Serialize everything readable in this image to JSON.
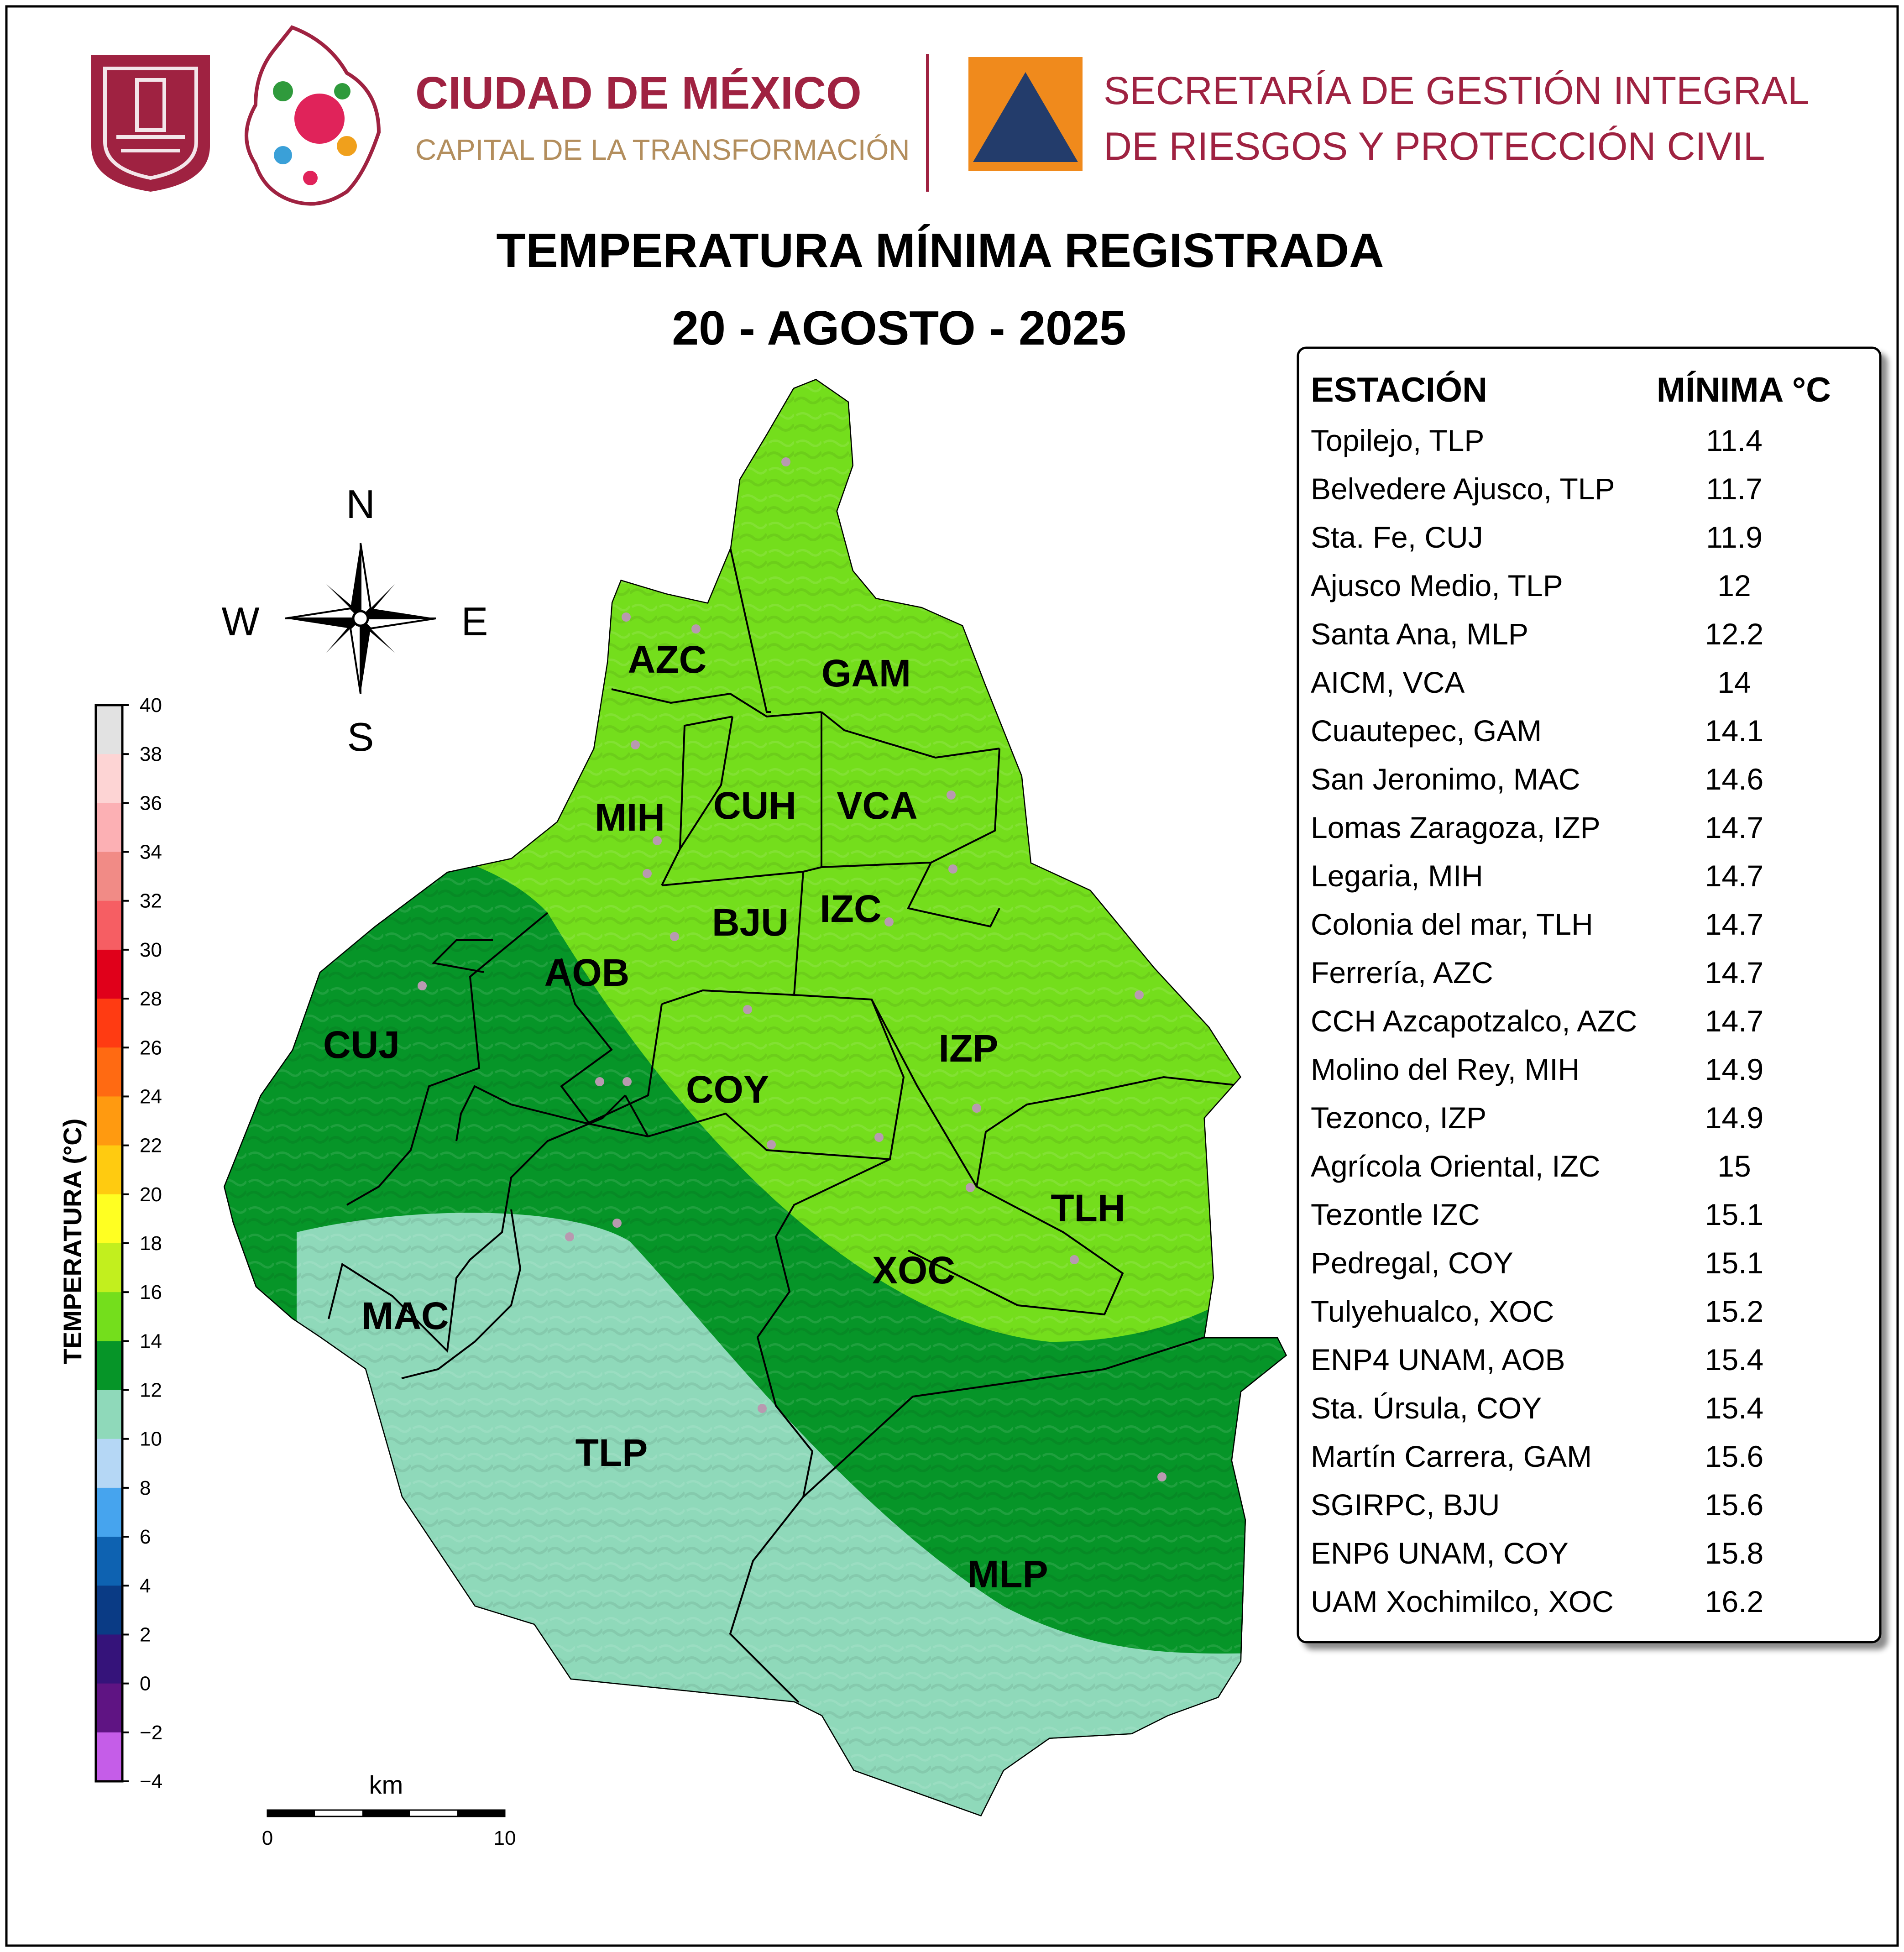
{
  "header": {
    "city_title": "CIUDAD DE MÉXICO",
    "city_subtitle": "CAPITAL DE LA TRANSFORMACIÓN",
    "agency_line1": "SECRETARÍA DE GESTIÓN INTEGRAL",
    "agency_line2": "DE RIESGOS Y PROTECCIÓN CIVIL",
    "colors": {
      "brand_wine": "#9f2241",
      "brand_gold": "#b38e5d",
      "protection_orange": "#f08a1c",
      "protection_navy": "#233c6b"
    }
  },
  "title": {
    "line1": "TEMPERATURA MÍNIMA REGISTRADA",
    "line2": "20 - AGOSTO - 2025"
  },
  "compass": {
    "n": "N",
    "s": "S",
    "e": "E",
    "w": "W",
    "icon": "compass-rose-icon"
  },
  "colorbar": {
    "label": "TEMPERATURA (°C)",
    "ticks": [
      "40",
      "38",
      "36",
      "34",
      "32",
      "30",
      "28",
      "26",
      "24",
      "22",
      "20",
      "18",
      "16",
      "14",
      "12",
      "10",
      "8",
      "6",
      "4",
      "2",
      "0",
      "−2",
      "−4"
    ],
    "bands_top_to_bottom": [
      {
        "from": 38,
        "to": 40,
        "color": "#e2e2e2"
      },
      {
        "from": 36,
        "to": 38,
        "color": "#fdd4d4"
      },
      {
        "from": 34,
        "to": 36,
        "color": "#fcb0b4"
      },
      {
        "from": 32,
        "to": 34,
        "color": "#f18b86"
      },
      {
        "from": 30,
        "to": 32,
        "color": "#f65e63"
      },
      {
        "from": 28,
        "to": 30,
        "color": "#e0001a"
      },
      {
        "from": 26,
        "to": 28,
        "color": "#ff3b12"
      },
      {
        "from": 24,
        "to": 26,
        "color": "#ff6a12"
      },
      {
        "from": 22,
        "to": 24,
        "color": "#ff9a10"
      },
      {
        "from": 20,
        "to": 22,
        "color": "#ffcb10"
      },
      {
        "from": 18,
        "to": 20,
        "color": "#ffff22"
      },
      {
        "from": 16,
        "to": 18,
        "color": "#c2ef1e"
      },
      {
        "from": 14,
        "to": 16,
        "color": "#74de1c"
      },
      {
        "from": 12,
        "to": 14,
        "color": "#069528"
      },
      {
        "from": 10,
        "to": 12,
        "color": "#8fd9ba"
      },
      {
        "from": 8,
        "to": 10,
        "color": "#b5d7f5"
      },
      {
        "from": 6,
        "to": 8,
        "color": "#46a4ee"
      },
      {
        "from": 4,
        "to": 6,
        "color": "#0e62b1"
      },
      {
        "from": 2,
        "to": 4,
        "color": "#0a3b85"
      },
      {
        "from": 0,
        "to": 2,
        "color": "#35137a"
      },
      {
        "from": -2,
        "to": 0,
        "color": "#5f1483"
      },
      {
        "from": -4,
        "to": -2,
        "color": "#c55de8"
      }
    ]
  },
  "map": {
    "fill_levels": {
      "level_14_16": "#74de1c",
      "level_12_14": "#069528",
      "level_10_12": "#8fd9ba"
    },
    "boroughs": [
      "AZC",
      "GAM",
      "MIH",
      "CUH",
      "VCA",
      "BJU",
      "IZC",
      "AOB",
      "CUJ",
      "COY",
      "IZP",
      "TLH",
      "XOC",
      "MAC",
      "TLP",
      "MLP"
    ]
  },
  "scale_bar": {
    "unit_label": "km",
    "min_label": "0",
    "max_label": "10"
  },
  "station_table": {
    "header_station": "ESTACIÓN",
    "header_min": "MÍNIMA °C",
    "rows": [
      {
        "station": "Topilejo, TLP",
        "min": "11.4"
      },
      {
        "station": "Belvedere Ajusco, TLP",
        "min": "11.7"
      },
      {
        "station": "Sta. Fe, CUJ",
        "min": "11.9"
      },
      {
        "station": "Ajusco Medio, TLP",
        "min": "12"
      },
      {
        "station": "Santa Ana, MLP",
        "min": "12.2"
      },
      {
        "station": "AICM, VCA",
        "min": "14"
      },
      {
        "station": "Cuautepec, GAM",
        "min": "14.1"
      },
      {
        "station": "San Jeronimo, MAC",
        "min": "14.6"
      },
      {
        "station": "Lomas Zaragoza, IZP",
        "min": "14.7"
      },
      {
        "station": "Legaria, MIH",
        "min": "14.7"
      },
      {
        "station": "Colonia del mar, TLH",
        "min": "14.7"
      },
      {
        "station": "Ferrería, AZC",
        "min": "14.7"
      },
      {
        "station": "CCH Azcapotzalco, AZC",
        "min": "14.7"
      },
      {
        "station": "Molino del Rey, MIH",
        "min": "14.9"
      },
      {
        "station": "Tezonco, IZP",
        "min": "14.9"
      },
      {
        "station": "Agrícola Oriental, IZC",
        "min": "15"
      },
      {
        "station": "Tezontle IZC",
        "min": "15.1"
      },
      {
        "station": "Pedregal, COY",
        "min": "15.1"
      },
      {
        "station": "Tulyehualco, XOC",
        "min": "15.2"
      },
      {
        "station": "ENP4 UNAM,  AOB",
        "min": "15.4"
      },
      {
        "station": "Sta. Úrsula, COY",
        "min": "15.4"
      },
      {
        "station": "Martín Carrera, GAM",
        "min": "15.6"
      },
      {
        "station": "SGIRPC, BJU",
        "min": "15.6"
      },
      {
        "station": "ENP6 UNAM,  COY",
        "min": "15.8"
      },
      {
        "station": "UAM Xochimilco, XOC",
        "min": "16.2"
      }
    ]
  }
}
